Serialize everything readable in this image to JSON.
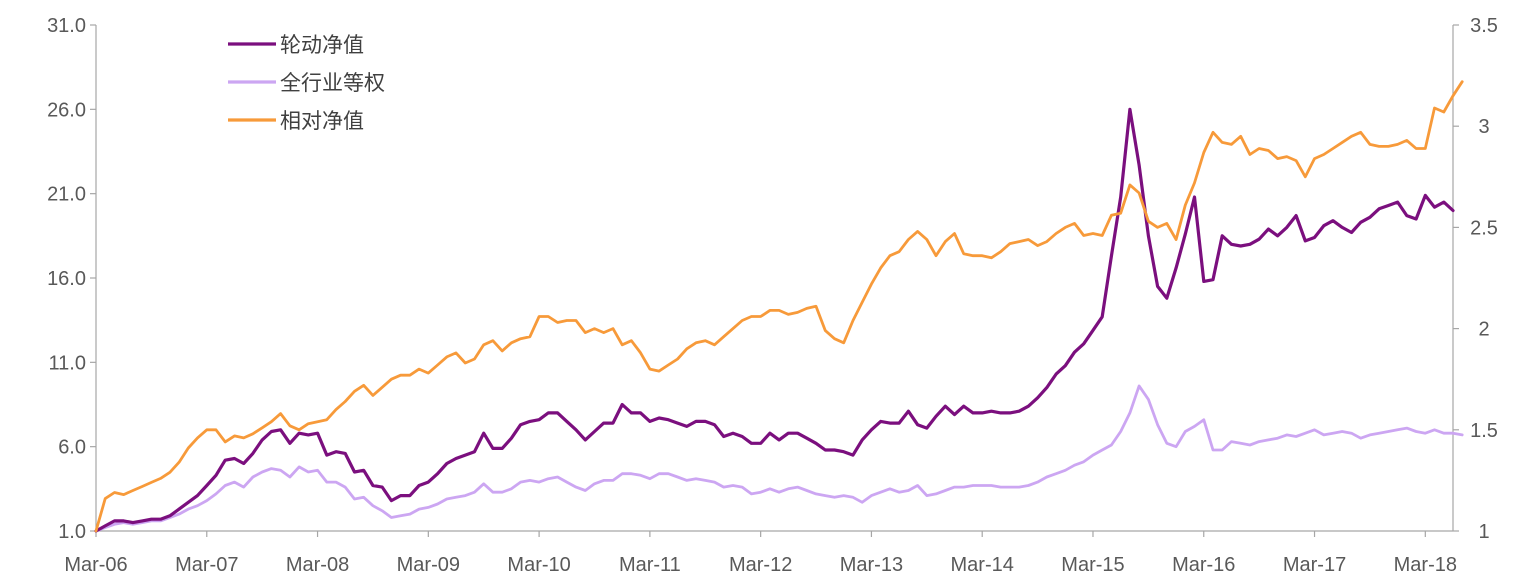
{
  "chart_data": {
    "type": "line",
    "title": "",
    "xlabel": "",
    "ylabel": "",
    "y2label": "",
    "ylim": [
      1.0,
      31.0
    ],
    "y_ticks": [
      "1.0",
      "6.0",
      "11.0",
      "16.0",
      "21.0",
      "26.0",
      "31.0"
    ],
    "y2lim": [
      1,
      3.5
    ],
    "y2_ticks": [
      "1",
      "1.5",
      "2",
      "2.5",
      "3",
      "3.5"
    ],
    "x_tick_labels": [
      "Mar-06",
      "Mar-07",
      "Mar-08",
      "Mar-09",
      "Mar-10",
      "Mar-11",
      "Mar-12",
      "Mar-13",
      "Mar-14",
      "Mar-15",
      "Mar-16",
      "Mar-17",
      "Mar-18"
    ],
    "x_start": "2006-03",
    "x_end": "2018-03",
    "grid": false,
    "legend_position": "top-left",
    "series": [
      {
        "name": "轮动净值",
        "axis": "left",
        "color": "#7B0F7E",
        "values": [
          1.0,
          1.3,
          1.6,
          1.6,
          1.5,
          1.6,
          1.7,
          1.7,
          1.9,
          2.3,
          2.7,
          3.1,
          3.7,
          4.3,
          5.2,
          5.3,
          5.0,
          5.6,
          6.4,
          6.9,
          7.0,
          6.2,
          6.8,
          6.7,
          6.8,
          5.5,
          5.7,
          5.6,
          4.5,
          4.6,
          3.7,
          3.6,
          2.8,
          3.1,
          3.1,
          3.7,
          3.9,
          4.4,
          5.0,
          5.3,
          5.5,
          5.7,
          6.8,
          5.9,
          5.9,
          6.5,
          7.3,
          7.5,
          7.6,
          8.0,
          8.0,
          7.5,
          7.0,
          6.4,
          6.9,
          7.4,
          7.4,
          8.5,
          8.0,
          8.0,
          7.5,
          7.7,
          7.6,
          7.4,
          7.2,
          7.5,
          7.5,
          7.3,
          6.6,
          6.8,
          6.6,
          6.2,
          6.2,
          6.8,
          6.4,
          6.8,
          6.8,
          6.5,
          6.2,
          5.8,
          5.8,
          5.7,
          5.5,
          6.4,
          7.0,
          7.5,
          7.4,
          7.4,
          8.1,
          7.3,
          7.1,
          7.8,
          8.4,
          7.9,
          8.4,
          8.0,
          8.0,
          8.1,
          8.0,
          8.0,
          8.1,
          8.4,
          8.9,
          9.5,
          10.3,
          10.8,
          11.6,
          12.1,
          12.9,
          13.7,
          17.3,
          20.8,
          26.0,
          22.7,
          18.5,
          15.5,
          14.8,
          16.6,
          18.6,
          20.8,
          15.8,
          15.9,
          18.5,
          18.0,
          17.9,
          18.0,
          18.3,
          18.9,
          18.5,
          19.0,
          19.7,
          18.2,
          18.4,
          19.1,
          19.4,
          19.0,
          18.7,
          19.3,
          19.6,
          20.1,
          20.3,
          20.5,
          19.7,
          19.5,
          20.9,
          20.2,
          20.5,
          20.0
        ]
      },
      {
        "name": "全行业等权",
        "axis": "left",
        "color": "#CCA6F2",
        "values": [
          1.0,
          1.2,
          1.4,
          1.5,
          1.4,
          1.5,
          1.6,
          1.6,
          1.8,
          2.0,
          2.3,
          2.5,
          2.8,
          3.2,
          3.7,
          3.9,
          3.6,
          4.2,
          4.5,
          4.7,
          4.6,
          4.2,
          4.8,
          4.5,
          4.6,
          3.9,
          3.9,
          3.6,
          2.9,
          3.0,
          2.5,
          2.2,
          1.8,
          1.9,
          2.0,
          2.3,
          2.4,
          2.6,
          2.9,
          3.0,
          3.1,
          3.3,
          3.8,
          3.3,
          3.3,
          3.5,
          3.9,
          4.0,
          3.9,
          4.1,
          4.2,
          3.9,
          3.6,
          3.4,
          3.8,
          4.0,
          4.0,
          4.4,
          4.4,
          4.3,
          4.1,
          4.4,
          4.4,
          4.2,
          4.0,
          4.1,
          4.0,
          3.9,
          3.6,
          3.7,
          3.6,
          3.2,
          3.3,
          3.5,
          3.3,
          3.5,
          3.6,
          3.4,
          3.2,
          3.1,
          3.0,
          3.1,
          3.0,
          2.7,
          3.1,
          3.3,
          3.5,
          3.3,
          3.4,
          3.7,
          3.1,
          3.2,
          3.4,
          3.6,
          3.6,
          3.7,
          3.7,
          3.7,
          3.6,
          3.6,
          3.6,
          3.7,
          3.9,
          4.2,
          4.4,
          4.6,
          4.9,
          5.1,
          5.5,
          5.8,
          6.1,
          6.9,
          8.0,
          9.6,
          8.8,
          7.3,
          6.2,
          6.0,
          6.9,
          7.2,
          7.6,
          5.8,
          5.8,
          6.3,
          6.2,
          6.1,
          6.3,
          6.4,
          6.5,
          6.7,
          6.6,
          6.8,
          7.0,
          6.7,
          6.8,
          6.9,
          6.8,
          6.5,
          6.7,
          6.8,
          6.9,
          7.0,
          7.1,
          6.9,
          6.8,
          7.0,
          6.8,
          6.8,
          6.7
        ]
      },
      {
        "name": "相对净值",
        "axis": "right",
        "color": "#F79A3A",
        "values": [
          1.0,
          1.16,
          1.19,
          1.18,
          1.2,
          1.22,
          1.24,
          1.26,
          1.29,
          1.34,
          1.41,
          1.46,
          1.5,
          1.5,
          1.44,
          1.47,
          1.46,
          1.48,
          1.51,
          1.54,
          1.58,
          1.52,
          1.5,
          1.53,
          1.54,
          1.55,
          1.6,
          1.64,
          1.69,
          1.72,
          1.67,
          1.71,
          1.75,
          1.77,
          1.77,
          1.8,
          1.78,
          1.82,
          1.86,
          1.88,
          1.83,
          1.85,
          1.92,
          1.94,
          1.89,
          1.93,
          1.95,
          1.96,
          2.06,
          2.06,
          2.03,
          2.04,
          2.04,
          1.98,
          2.0,
          1.98,
          2.0,
          1.92,
          1.94,
          1.88,
          1.8,
          1.79,
          1.82,
          1.85,
          1.9,
          1.93,
          1.94,
          1.92,
          1.96,
          2.0,
          2.04,
          2.06,
          2.06,
          2.09,
          2.09,
          2.07,
          2.08,
          2.1,
          2.11,
          1.99,
          1.95,
          1.93,
          2.04,
          2.13,
          2.22,
          2.3,
          2.36,
          2.38,
          2.44,
          2.48,
          2.44,
          2.36,
          2.43,
          2.47,
          2.37,
          2.36,
          2.36,
          2.35,
          2.38,
          2.42,
          2.43,
          2.44,
          2.41,
          2.43,
          2.47,
          2.5,
          2.52,
          2.46,
          2.47,
          2.46,
          2.56,
          2.57,
          2.71,
          2.67,
          2.53,
          2.5,
          2.52,
          2.44,
          2.61,
          2.72,
          2.87,
          2.97,
          2.92,
          2.91,
          2.95,
          2.86,
          2.89,
          2.88,
          2.84,
          2.85,
          2.83,
          2.75,
          2.84,
          2.86,
          2.89,
          2.92,
          2.95,
          2.97,
          2.91,
          2.9,
          2.9,
          2.91,
          2.93,
          2.89,
          2.89,
          3.09,
          3.07,
          3.15,
          3.22
        ]
      }
    ]
  }
}
